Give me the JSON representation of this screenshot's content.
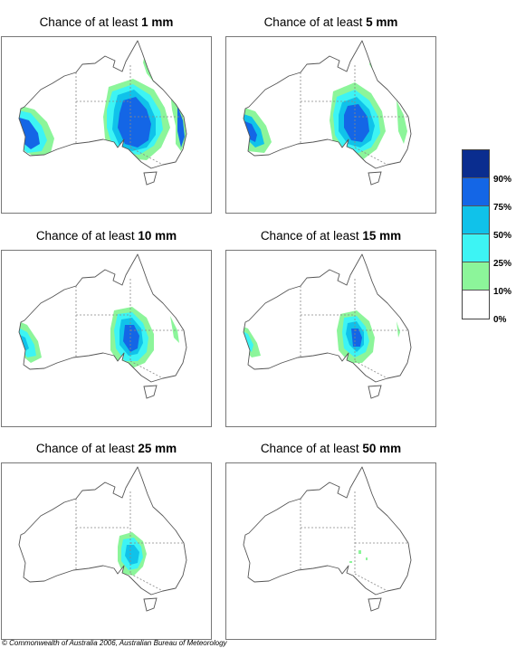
{
  "panels": [
    {
      "prefix": "Chance of at least",
      "amount": "1 mm"
    },
    {
      "prefix": "Chance of at least",
      "amount": "5 mm"
    },
    {
      "prefix": "Chance of at least",
      "amount": "10 mm"
    },
    {
      "prefix": "Chance of at least",
      "amount": "15 mm"
    },
    {
      "prefix": "Chance of at least",
      "amount": "25 mm"
    },
    {
      "prefix": "Chance of at least",
      "amount": "50 mm"
    }
  ],
  "legend": {
    "ticks": [
      "90%",
      "75%",
      "50%",
      "25%",
      "10%",
      "0%"
    ],
    "colors": [
      "#0a2d8f",
      "#1466e6",
      "#10c2ea",
      "#3df4f4",
      "#8cf59a",
      "#ffffff"
    ]
  },
  "copyright": "© Commonwealth of Australia 2006, Australian Bureau of Meteorology"
}
